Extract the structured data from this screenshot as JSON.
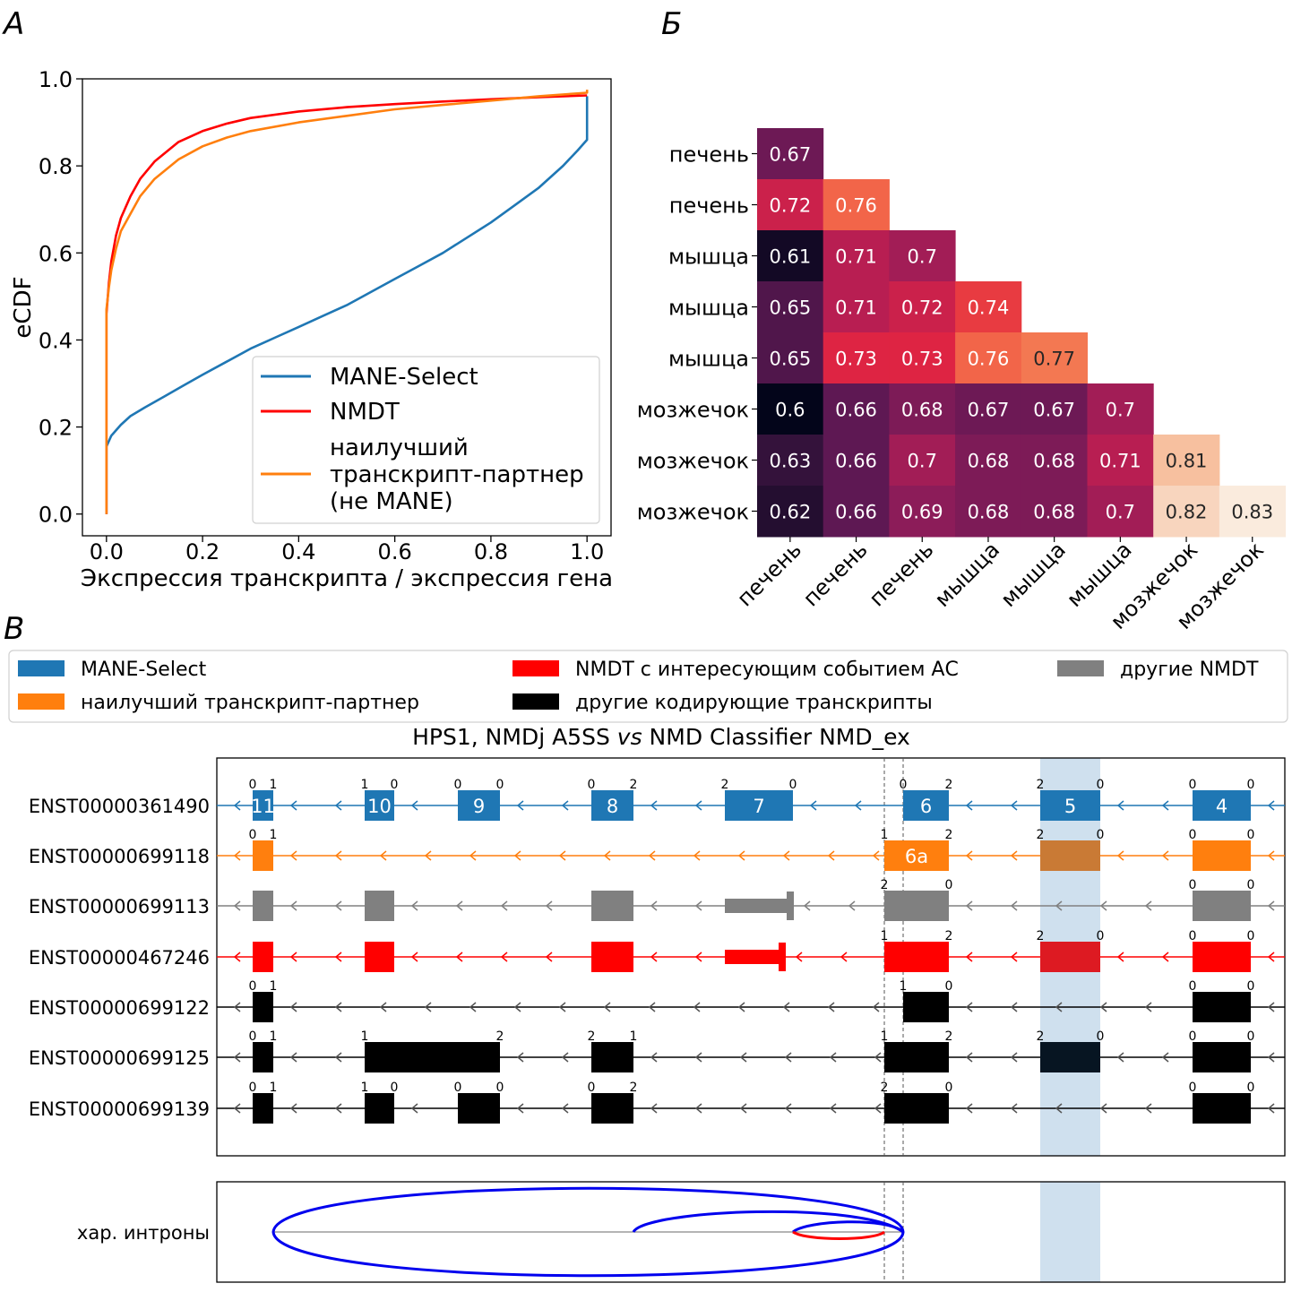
{
  "panels": {
    "a": "А",
    "b": "Б",
    "c": "В"
  },
  "chart_data": [
    {
      "type": "line",
      "panel": "А",
      "xlabel": "Экспрессия транскрипта / экспрессия гена",
      "ylabel": "eCDF",
      "xlim": [
        -0.05,
        1.05
      ],
      "ylim": [
        -0.05,
        1.0
      ],
      "xticks": [
        "0.0",
        "0.2",
        "0.4",
        "0.6",
        "0.8",
        "1.0"
      ],
      "yticks": [
        "0.0",
        "0.2",
        "0.4",
        "0.6",
        "0.8",
        "1.0"
      ],
      "grid": false,
      "legend_position": "lower right",
      "series": [
        {
          "name": "MANE-Select",
          "color": "#1f77b4",
          "x": [
            0,
            0,
            0.01,
            0.03,
            0.05,
            0.08,
            0.12,
            0.16,
            0.2,
            0.25,
            0.3,
            0.35,
            0.4,
            0.45,
            0.5,
            0.55,
            0.6,
            0.65,
            0.7,
            0.75,
            0.8,
            0.85,
            0.9,
            0.95,
            0.98,
            1.0,
            1.0,
            1.0
          ],
          "y": [
            0,
            0.155,
            0.18,
            0.205,
            0.225,
            0.245,
            0.27,
            0.295,
            0.32,
            0.35,
            0.38,
            0.405,
            0.43,
            0.455,
            0.48,
            0.51,
            0.54,
            0.57,
            0.6,
            0.635,
            0.67,
            0.71,
            0.75,
            0.8,
            0.835,
            0.86,
            0.925,
            0.96
          ]
        },
        {
          "name": "NMDT",
          "color": "#ff0000",
          "x": [
            0,
            0,
            0.005,
            0.01,
            0.02,
            0.03,
            0.05,
            0.07,
            0.1,
            0.15,
            0.2,
            0.25,
            0.3,
            0.4,
            0.5,
            0.6,
            0.7,
            0.8,
            0.9,
            1.0
          ],
          "y": [
            0,
            0.46,
            0.53,
            0.58,
            0.64,
            0.68,
            0.73,
            0.77,
            0.81,
            0.855,
            0.88,
            0.897,
            0.91,
            0.925,
            0.935,
            0.942,
            0.948,
            0.953,
            0.958,
            0.962
          ]
        },
        {
          "name": "наилучший транскрипт-партнер (не MANE)",
          "color": "#ff7f0e",
          "x": [
            0,
            0,
            0.005,
            0.01,
            0.02,
            0.03,
            0.05,
            0.07,
            0.1,
            0.15,
            0.2,
            0.25,
            0.3,
            0.4,
            0.5,
            0.6,
            0.7,
            0.8,
            0.9,
            1.0,
            1.0
          ],
          "y": [
            0,
            0.47,
            0.52,
            0.56,
            0.61,
            0.65,
            0.69,
            0.73,
            0.77,
            0.815,
            0.845,
            0.865,
            0.88,
            0.9,
            0.915,
            0.93,
            0.94,
            0.95,
            0.96,
            0.968,
            0.975
          ]
        }
      ]
    },
    {
      "type": "heatmap",
      "panel": "Б",
      "colorscale": "rocket",
      "row_labels": [
        "печень",
        "печень",
        "мышца",
        "мышца",
        "мышца",
        "мозжечок",
        "мозжечок",
        "мозжечок"
      ],
      "col_labels": [
        "печень",
        "печень",
        "печень",
        "мышца",
        "мышца",
        "мышца",
        "мозжечок",
        "мозжечок"
      ],
      "values": [
        [
          0.67
        ],
        [
          0.72,
          0.76
        ],
        [
          0.61,
          0.71,
          0.7
        ],
        [
          0.65,
          0.71,
          0.72,
          0.74
        ],
        [
          0.65,
          0.73,
          0.73,
          0.76,
          0.77
        ],
        [
          0.6,
          0.66,
          0.68,
          0.67,
          0.67,
          0.7
        ],
        [
          0.63,
          0.66,
          0.7,
          0.68,
          0.68,
          0.71,
          0.81
        ],
        [
          0.62,
          0.66,
          0.69,
          0.68,
          0.68,
          0.7,
          0.82,
          0.83
        ]
      ]
    }
  ],
  "gene_panel": {
    "title_prefix": "HPS1, NMDj A5SS ",
    "title_vs": "vs",
    "title_suffix": " NMD Classifier NMD_ex",
    "legend": [
      {
        "label": "MANE-Select",
        "color": "#1f77b4"
      },
      {
        "label": "наилучший транскрипт-партнер",
        "color": "#ff7f0e"
      },
      {
        "label": "NMDT с интересующим событием АС",
        "color": "#ff0000"
      },
      {
        "label": "другие кодирующие транскрипты",
        "color": "#000000"
      },
      {
        "label": "другие NMDT",
        "color": "#808080"
      }
    ],
    "highlight_color": "#cfe0ee",
    "transcripts": [
      {
        "id": "ENST00000361490",
        "color": "#1f77b4",
        "exons": [
          {
            "s": 282,
            "e": 305,
            "lab": "11",
            "l": "0",
            "r": "1"
          },
          {
            "s": 407,
            "e": 440,
            "lab": "10",
            "l": "1",
            "r": "0"
          },
          {
            "s": 511,
            "e": 558,
            "lab": "9",
            "l": "0",
            "r": "0"
          },
          {
            "s": 660,
            "e": 707,
            "lab": "8",
            "l": "0",
            "r": "2"
          },
          {
            "s": 809,
            "e": 885,
            "lab": "7",
            "l": "2",
            "r": "0"
          },
          {
            "s": 1008,
            "e": 1059,
            "lab": "6",
            "l": "0",
            "r": "2"
          },
          {
            "s": 1161,
            "e": 1228,
            "lab": "5",
            "l": "2",
            "r": "0"
          },
          {
            "s": 1331,
            "e": 1396,
            "lab": "4",
            "l": "0",
            "r": "0"
          }
        ]
      },
      {
        "id": "ENST00000699118",
        "color": "#ff7f0e",
        "exons": [
          {
            "s": 282,
            "e": 305,
            "lab": "",
            "l": "0",
            "r": "1"
          },
          {
            "s": 987,
            "e": 1059,
            "lab": "6a",
            "l": "1",
            "r": "2"
          },
          {
            "s": 1161,
            "e": 1228,
            "lab": "",
            "l": "2",
            "r": "0"
          },
          {
            "s": 1331,
            "e": 1396,
            "lab": "",
            "l": "0",
            "r": "0"
          }
        ]
      },
      {
        "id": "ENST00000699113",
        "color": "#808080",
        "exons": [
          {
            "s": 282,
            "e": 305,
            "lab": "",
            "l": "",
            "r": ""
          },
          {
            "s": 407,
            "e": 440,
            "lab": "",
            "l": "",
            "r": ""
          },
          {
            "s": 660,
            "e": 707,
            "lab": "",
            "l": "",
            "r": ""
          },
          {
            "s": 809,
            "e": 878,
            "lab": "",
            "l": "",
            "r": "",
            "cap": true
          },
          {
            "s": 987,
            "e": 1059,
            "lab": "",
            "l": "2",
            "r": "0"
          },
          {
            "s": 1331,
            "e": 1396,
            "lab": "",
            "l": "0",
            "r": "0"
          }
        ]
      },
      {
        "id": "ENST00000467246",
        "color": "#ff0000",
        "exons": [
          {
            "s": 282,
            "e": 305,
            "lab": "",
            "l": "",
            "r": ""
          },
          {
            "s": 407,
            "e": 440,
            "lab": "",
            "l": "",
            "r": ""
          },
          {
            "s": 660,
            "e": 707,
            "lab": "",
            "l": "",
            "r": ""
          },
          {
            "s": 809,
            "e": 869,
            "lab": "",
            "l": "",
            "r": "",
            "cap": true
          },
          {
            "s": 987,
            "e": 1059,
            "lab": "",
            "l": "1",
            "r": "2"
          },
          {
            "s": 1161,
            "e": 1228,
            "lab": "",
            "l": "2",
            "r": "0"
          },
          {
            "s": 1331,
            "e": 1396,
            "lab": "",
            "l": "0",
            "r": "0"
          }
        ]
      },
      {
        "id": "ENST00000699122",
        "color": "#000000",
        "exons": [
          {
            "s": 282,
            "e": 305,
            "lab": "",
            "l": "0",
            "r": "1"
          },
          {
            "s": 1008,
            "e": 1059,
            "lab": "",
            "l": "1",
            "r": "0"
          },
          {
            "s": 1331,
            "e": 1396,
            "lab": "",
            "l": "0",
            "r": "0"
          }
        ]
      },
      {
        "id": "ENST00000699125",
        "color": "#000000",
        "exons": [
          {
            "s": 282,
            "e": 305,
            "lab": "",
            "l": "0",
            "r": "1"
          },
          {
            "s": 407,
            "e": 558,
            "lab": "",
            "l": "1",
            "r": "2"
          },
          {
            "s": 660,
            "e": 707,
            "lab": "",
            "l": "2",
            "r": "1"
          },
          {
            "s": 987,
            "e": 1059,
            "lab": "",
            "l": "1",
            "r": "2"
          },
          {
            "s": 1161,
            "e": 1228,
            "lab": "",
            "l": "2",
            "r": "0"
          },
          {
            "s": 1331,
            "e": 1396,
            "lab": "",
            "l": "0",
            "r": "0"
          }
        ]
      },
      {
        "id": "ENST00000699139",
        "color": "#000000",
        "exons": [
          {
            "s": 282,
            "e": 305,
            "lab": "",
            "l": "0",
            "r": "1"
          },
          {
            "s": 407,
            "e": 440,
            "lab": "",
            "l": "1",
            "r": "0"
          },
          {
            "s": 511,
            "e": 558,
            "lab": "",
            "l": "0",
            "r": "0"
          },
          {
            "s": 660,
            "e": 707,
            "lab": "",
            "l": "0",
            "r": "2"
          },
          {
            "s": 987,
            "e": 1059,
            "lab": "",
            "l": "2",
            "r": "0"
          },
          {
            "s": 1331,
            "e": 1396,
            "lab": "",
            "l": "0",
            "r": "0"
          }
        ]
      }
    ],
    "introns_label": "хар. интроны"
  }
}
